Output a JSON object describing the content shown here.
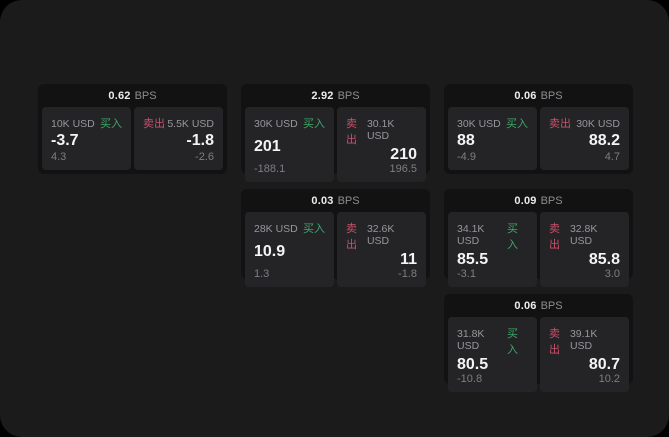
{
  "labels": {
    "bps_unit": "BPS",
    "buy": "买入",
    "sell": "卖出"
  },
  "colors": {
    "surface": "#1b1b1c",
    "card": "#121213",
    "panel": "#242427",
    "buy-green": "#3ea768",
    "sell-red": "#c8506a",
    "muted": "#8e8e92",
    "label-gray": "#97979b",
    "delta-gray": "#7e7e82"
  },
  "cards": [
    {
      "bps": "0.62",
      "buy": {
        "size": "10K USD",
        "price": "-3.7",
        "delta": "4.3"
      },
      "sell": {
        "size": "5.5K USD",
        "price": "-1.8",
        "delta": "-2.6"
      }
    },
    {
      "bps": "2.92",
      "buy": {
        "size": "30K USD",
        "price": "201",
        "delta": "-188.1"
      },
      "sell": {
        "size": "30.1K USD",
        "price": "210",
        "delta": "196.5"
      }
    },
    {
      "bps": "0.06",
      "buy": {
        "size": "30K USD",
        "price": "88",
        "delta": "-4.9"
      },
      "sell": {
        "size": "30K USD",
        "price": "88.2",
        "delta": "4.7"
      }
    },
    {
      "bps": "0.03",
      "buy": {
        "size": "28K USD",
        "price": "10.9",
        "delta": "1.3"
      },
      "sell": {
        "size": "32.6K USD",
        "price": "11",
        "delta": "-1.8"
      }
    },
    {
      "bps": "0.09",
      "buy": {
        "size": "34.1K USD",
        "price": "85.5",
        "delta": "-3.1"
      },
      "sell": {
        "size": "32.8K USD",
        "price": "85.8",
        "delta": "3.0"
      }
    },
    {
      "bps": "0.06",
      "buy": {
        "size": "31.8K USD",
        "price": "80.5",
        "delta": "-10.8"
      },
      "sell": {
        "size": "39.1K USD",
        "price": "80.7",
        "delta": "10.2"
      }
    }
  ]
}
